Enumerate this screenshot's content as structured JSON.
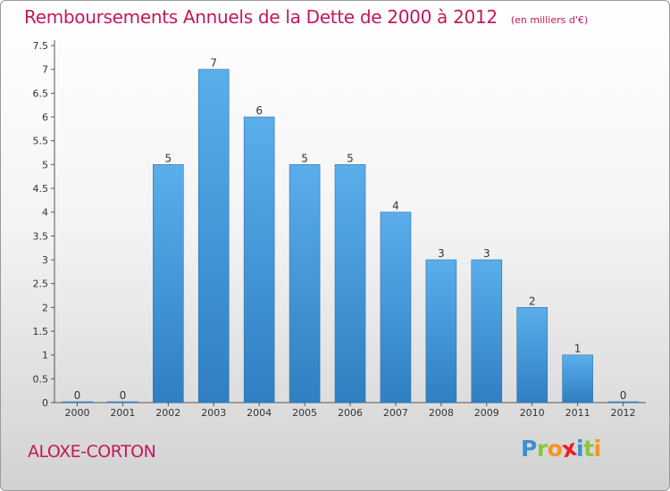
{
  "chart_data": {
    "type": "bar",
    "title": "Remboursements Annuels de la Dette de 2000 à 2012",
    "unit_note": "(en milliers d'€)",
    "categories": [
      "2000",
      "2001",
      "2002",
      "2003",
      "2004",
      "2005",
      "2006",
      "2007",
      "2008",
      "2009",
      "2010",
      "2011",
      "2012"
    ],
    "values": [
      0,
      0,
      5,
      7,
      6,
      5,
      5,
      4,
      3,
      3,
      2,
      1,
      0
    ],
    "value_labels": [
      "0",
      "0",
      "5",
      "7",
      "6",
      "5",
      "5",
      "4",
      "3",
      "3",
      "2",
      "1",
      "0"
    ],
    "yticks": [
      "0",
      "0.5",
      "1",
      "1.5",
      "2",
      "2.5",
      "3",
      "3.5",
      "4",
      "4.5",
      "5",
      "5.5",
      "6",
      "6.5",
      "7",
      "7.5"
    ],
    "ylim": [
      0,
      7.5
    ],
    "xlabel": "",
    "ylabel": "",
    "grid": false,
    "bar_color": "#4f9fdc",
    "title_color": "#c2185b"
  },
  "footer": {
    "commune": "ALOXE-CORTON",
    "logo_letters": [
      {
        "ch": "P",
        "color": "#3c8fd1"
      },
      {
        "ch": "r",
        "color": "#8bc53f"
      },
      {
        "ch": "o",
        "color": "#f7941d"
      },
      {
        "ch": "x",
        "color": "#ed1c24"
      },
      {
        "ch": "i",
        "color": "#3c8fd1"
      },
      {
        "ch": "t",
        "color": "#8bc53f"
      },
      {
        "ch": "i",
        "color": "#f7941d"
      }
    ]
  }
}
